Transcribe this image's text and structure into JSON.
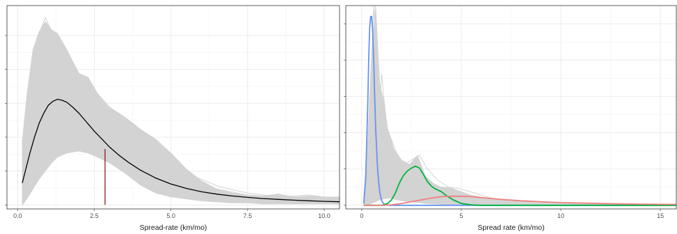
{
  "colors": {
    "background": "#ffffff",
    "panel_border": "#333333",
    "grid_major": "#ebebeb",
    "grid_minor": "#f4f4f4",
    "posterior_draws": "#d3d3d3",
    "fit_curve": "#000000",
    "marker_line": "#8b1a1a",
    "series_blue": "#6495ed",
    "series_green": "#00b33c",
    "series_red": "#f08080"
  },
  "chart_data": [
    {
      "type": "line",
      "xlabel": "Spread-rate (km/mo)",
      "ylabel": "",
      "xlim": [
        -0.35,
        10.5
      ],
      "ylim": [
        -0.02,
        1.0
      ],
      "x_ticks": [
        0,
        2.5,
        5,
        7.5,
        10
      ],
      "x_tick_labels": [
        "0.0",
        "2.5",
        "5.0",
        "7.5",
        "10.0"
      ],
      "y_ticks": [
        0.0,
        0.17,
        0.34,
        0.51,
        0.68,
        0.85
      ],
      "y_tick_labels": [],
      "grid": true,
      "legend": "none",
      "draws": {
        "description_for_band": "many grey density draws",
        "band_upper": {
          "x": [
            0.15,
            0.3,
            0.5,
            0.7,
            0.9,
            1.1,
            1.3,
            1.6,
            2.0,
            2.3,
            2.6,
            3.0,
            3.5,
            4.0,
            4.5,
            5.0,
            5.5,
            6.0,
            6.5,
            7.0,
            7.5,
            8.0,
            8.5,
            9.0,
            9.5,
            10.0,
            10.5
          ],
          "y": [
            0.32,
            0.55,
            0.78,
            0.87,
            0.92,
            0.88,
            0.86,
            0.78,
            0.66,
            0.64,
            0.56,
            0.49,
            0.44,
            0.38,
            0.33,
            0.26,
            0.18,
            0.12,
            0.08,
            0.06,
            0.05,
            0.045,
            0.055,
            0.04,
            0.045,
            0.04,
            0.04
          ]
        },
        "band_lower": {
          "x": [
            0.15,
            0.3,
            0.5,
            0.7,
            0.9,
            1.1,
            1.3,
            1.6,
            2.0,
            2.3,
            2.6,
            3.0,
            3.5,
            4.0,
            4.5,
            5.0,
            5.5,
            6.0,
            6.5,
            7.0,
            7.5,
            8.0,
            8.5,
            9.0,
            9.5,
            10.0,
            10.5
          ],
          "y": [
            0.0,
            0.03,
            0.08,
            0.13,
            0.17,
            0.21,
            0.24,
            0.26,
            0.27,
            0.26,
            0.24,
            0.21,
            0.16,
            0.1,
            0.06,
            0.04,
            0.03,
            0.02,
            0.015,
            0.01,
            0.01,
            0.005,
            0.005,
            0.005,
            0.005,
            0.005,
            0.005
          ]
        },
        "curves": [
          {
            "x": [
              0.15,
              0.4,
              0.7,
              0.9,
              1.2,
              1.6,
              2.0,
              2.5,
              3.0,
              3.5,
              4.0,
              5.0,
              6.0,
              7.0,
              8.0,
              9.0,
              10.5
            ],
            "y": [
              0.2,
              0.55,
              0.86,
              0.94,
              0.84,
              0.68,
              0.55,
              0.42,
              0.3,
              0.2,
              0.13,
              0.06,
              0.03,
              0.02,
              0.01,
              0.01,
              0.005
            ]
          },
          {
            "x": [
              0.15,
              0.5,
              0.9,
              1.3,
              1.8,
              2.3,
              2.8,
              3.3,
              4.0,
              5.0,
              6.0,
              7.0,
              8.0,
              9.0,
              10.5
            ],
            "y": [
              0.1,
              0.3,
              0.5,
              0.6,
              0.58,
              0.62,
              0.52,
              0.38,
              0.25,
              0.12,
              0.06,
              0.03,
              0.02,
              0.01,
              0.005
            ]
          },
          {
            "x": [
              0.15,
              0.5,
              1.0,
              1.5,
              2.0,
              2.5,
              3.0,
              3.5,
              4.0,
              4.5,
              5.0,
              6.0,
              7.0,
              8.0,
              9.0,
              10.5
            ],
            "y": [
              0.05,
              0.2,
              0.35,
              0.42,
              0.44,
              0.42,
              0.38,
              0.32,
              0.25,
              0.2,
              0.15,
              0.09,
              0.05,
              0.03,
              0.02,
              0.01
            ]
          },
          {
            "x": [
              0.15,
              0.4,
              0.8,
              1.2,
              1.6,
              2.0,
              2.6,
              3.2,
              4.0,
              5.0,
              6.0,
              7.5,
              9.0,
              10.5
            ],
            "y": [
              0.25,
              0.6,
              0.8,
              0.76,
              0.66,
              0.56,
              0.44,
              0.32,
              0.2,
              0.1,
              0.05,
              0.02,
              0.01,
              0.005
            ]
          },
          {
            "x": [
              0.15,
              0.6,
              1.2,
              1.8,
              2.4,
              3.0,
              3.6,
              4.2,
              5.0,
              5.8,
              6.6,
              7.5,
              8.5,
              9.5,
              10.5
            ],
            "y": [
              0.03,
              0.12,
              0.25,
              0.32,
              0.36,
              0.34,
              0.3,
              0.26,
              0.2,
              0.14,
              0.09,
              0.06,
              0.04,
              0.05,
              0.03
            ]
          },
          {
            "x": [
              0.15,
              0.5,
              0.9,
              1.4,
              2.0,
              2.6,
              3.2,
              3.8,
              4.5,
              5.5,
              6.5,
              7.5,
              8.5,
              10.5
            ],
            "y": [
              0.15,
              0.42,
              0.7,
              0.72,
              0.6,
              0.5,
              0.42,
              0.33,
              0.24,
              0.14,
              0.08,
              0.05,
              0.03,
              0.01
            ]
          },
          {
            "x": [
              0.15,
              0.5,
              1.0,
              1.5,
              2.0,
              2.5,
              3.0,
              3.5,
              4.0,
              5.0,
              6.0,
              7.0,
              8.0,
              10.5
            ],
            "y": [
              0.08,
              0.3,
              0.55,
              0.58,
              0.5,
              0.43,
              0.37,
              0.3,
              0.24,
              0.14,
              0.08,
              0.04,
              0.02,
              0.005
            ]
          }
        ]
      },
      "fit_curve": {
        "x": [
          0.15,
          0.25,
          0.4,
          0.55,
          0.7,
          0.85,
          1.0,
          1.15,
          1.3,
          1.45,
          1.6,
          1.8,
          2.0,
          2.25,
          2.5,
          2.75,
          3.0,
          3.3,
          3.6,
          4.0,
          4.5,
          5.0,
          5.5,
          6.0,
          6.5,
          7.0,
          7.5,
          8.0,
          8.5,
          9.0,
          9.5,
          10.0,
          10.5
        ],
        "y": [
          0.11,
          0.17,
          0.26,
          0.34,
          0.41,
          0.46,
          0.5,
          0.52,
          0.53,
          0.525,
          0.515,
          0.49,
          0.46,
          0.415,
          0.37,
          0.33,
          0.29,
          0.25,
          0.215,
          0.175,
          0.135,
          0.105,
          0.083,
          0.066,
          0.054,
          0.045,
          0.038,
          0.032,
          0.028,
          0.024,
          0.021,
          0.018,
          0.016
        ]
      },
      "marker": {
        "x": 2.85,
        "y_top": 0.28
      }
    },
    {
      "type": "line",
      "xlabel": "Spread rate (km/mo)",
      "ylabel": "",
      "xlim": [
        -0.8,
        15.8
      ],
      "ylim": [
        -0.04,
        2.2
      ],
      "x_ticks": [
        0,
        5,
        10,
        15
      ],
      "x_tick_labels": [
        "0",
        "5",
        "10",
        "15"
      ],
      "y_ticks": [
        0.0,
        0.4,
        0.8,
        1.2,
        1.6,
        2.0
      ],
      "y_tick_labels": [],
      "grid": true,
      "legend": "none",
      "draws": {
        "band_upper": {
          "x": [
            0.1,
            0.3,
            0.5,
            0.7,
            0.9,
            1.1,
            1.3,
            1.6,
            2.0,
            2.4,
            2.8,
            3.2,
            3.6,
            4.0,
            4.5,
            5.0,
            5.5,
            6.0,
            7.0,
            8.0,
            9.0,
            10.0,
            11.0,
            12.0,
            13.0,
            14.0,
            15.8
          ],
          "y": [
            0.1,
            0.7,
            1.7,
            2.2,
            1.35,
            1.15,
            0.85,
            0.62,
            0.5,
            0.45,
            0.55,
            0.32,
            0.24,
            0.2,
            0.19,
            0.15,
            0.11,
            0.09,
            0.06,
            0.04,
            0.03,
            0.02,
            0.02,
            0.015,
            0.015,
            0.01,
            0.01
          ]
        },
        "band_lower": {
          "x": [
            0.1,
            0.3,
            0.5,
            0.7,
            0.9,
            1.1,
            1.3,
            1.6,
            2.0,
            2.4,
            2.8,
            3.2,
            3.6,
            4.0,
            4.5,
            5.0,
            5.5,
            6.0,
            7.0,
            8.0,
            9.0,
            10.0,
            11.0,
            12.0,
            13.0,
            14.0,
            15.8
          ],
          "y": [
            0.0,
            0.0,
            0.02,
            0.04,
            0.06,
            0.07,
            0.08,
            0.07,
            0.05,
            0.04,
            0.03,
            0.02,
            0.015,
            0.01,
            0.005,
            0.005,
            0.0,
            0.0,
            0.0,
            0.0,
            0.0,
            0.0,
            0.0,
            0.0,
            0.0,
            0.0,
            0.0
          ]
        },
        "curves": [
          {
            "x": [
              0.1,
              0.3,
              0.5,
              0.6,
              0.7,
              0.8,
              1.0,
              1.3,
              1.7,
              2.2,
              3.0,
              4.0,
              5.0,
              6.0,
              8.0,
              10.0,
              15.8
            ],
            "y": [
              0.05,
              0.5,
              1.6,
              2.2,
              1.8,
              1.2,
              0.8,
              0.55,
              0.4,
              0.28,
              0.18,
              0.1,
              0.06,
              0.04,
              0.02,
              0.01,
              0.005
            ]
          },
          {
            "x": [
              0.1,
              0.4,
              0.7,
              0.9,
              1.0,
              1.1,
              1.3,
              1.6,
              2.0,
              2.5,
              3.0,
              4.0,
              5.0,
              6.0,
              8.0,
              10.0,
              15.8
            ],
            "y": [
              0.02,
              0.3,
              0.7,
              1.1,
              1.45,
              1.2,
              0.8,
              0.55,
              0.38,
              0.26,
              0.18,
              0.1,
              0.06,
              0.03,
              0.02,
              0.01,
              0.005
            ]
          },
          {
            "x": [
              0.1,
              0.5,
              1.0,
              1.5,
              2.0,
              2.5,
              2.9,
              3.3,
              3.8,
              4.5,
              5.5,
              7.0,
              9.0,
              12.0,
              15.8
            ],
            "y": [
              0.01,
              0.15,
              0.32,
              0.4,
              0.42,
              0.5,
              0.55,
              0.4,
              0.28,
              0.18,
              0.1,
              0.05,
              0.02,
              0.01,
              0.005
            ]
          },
          {
            "x": [
              0.1,
              0.4,
              0.8,
              1.2,
              1.7,
              2.3,
              3.0,
              3.8,
              4.6,
              5.5,
              6.5,
              8.0,
              10.0,
              12.0,
              15.8
            ],
            "y": [
              0.02,
              0.4,
              0.95,
              0.9,
              0.6,
              0.38,
              0.24,
              0.16,
              0.12,
              0.08,
              0.05,
              0.03,
              0.015,
              0.01,
              0.005
            ]
          },
          {
            "x": [
              0.1,
              0.6,
              1.2,
              1.8,
              2.5,
              3.2,
              4.0,
              4.8,
              5.6,
              6.5,
              7.5,
              9.0,
              11.0,
              13.0,
              15.8
            ],
            "y": [
              0.01,
              0.1,
              0.22,
              0.28,
              0.3,
              0.26,
              0.2,
              0.19,
              0.14,
              0.08,
              0.05,
              0.03,
              0.02,
              0.01,
              0.005
            ]
          }
        ]
      },
      "series": [
        {
          "color_key": "series_blue",
          "x": [
            0.1,
            0.2,
            0.3,
            0.35,
            0.4,
            0.45,
            0.5,
            0.55,
            0.6,
            0.65,
            0.7,
            0.8,
            0.9,
            1.0,
            1.1,
            1.2,
            1.4,
            2.0,
            5.0,
            10.0,
            15.8
          ],
          "y": [
            0.02,
            0.3,
            1.1,
            1.6,
            1.95,
            2.08,
            2.08,
            1.92,
            1.6,
            1.2,
            0.85,
            0.38,
            0.15,
            0.05,
            0.02,
            0.005,
            0.0,
            0.0,
            0.0,
            0.0,
            0.0
          ]
        },
        {
          "color_key": "series_green",
          "x": [
            0.1,
            1.0,
            1.3,
            1.5,
            1.7,
            1.9,
            2.1,
            2.3,
            2.5,
            2.7,
            2.9,
            3.1,
            3.3,
            3.5,
            3.7,
            4.0,
            4.3,
            4.6,
            5.0,
            5.5,
            6.0,
            10.0,
            15.8
          ],
          "y": [
            0.0,
            0.0,
            0.02,
            0.06,
            0.14,
            0.25,
            0.33,
            0.38,
            0.41,
            0.43,
            0.41,
            0.34,
            0.26,
            0.21,
            0.18,
            0.15,
            0.1,
            0.06,
            0.02,
            0.005,
            0.0,
            0.0,
            0.0
          ]
        },
        {
          "color_key": "series_red",
          "x": [
            0.1,
            1.0,
            1.5,
            2.0,
            2.5,
            3.0,
            3.5,
            4.0,
            4.5,
            5.0,
            5.5,
            6.0,
            6.5,
            7.0,
            8.0,
            9.0,
            10.0,
            11.0,
            12.0,
            13.0,
            14.0,
            15.0,
            15.8
          ],
          "y": [
            0.0,
            0.0,
            0.005,
            0.02,
            0.04,
            0.06,
            0.08,
            0.095,
            0.1,
            0.1,
            0.095,
            0.085,
            0.075,
            0.065,
            0.05,
            0.04,
            0.03,
            0.025,
            0.02,
            0.016,
            0.013,
            0.011,
            0.01
          ]
        }
      ]
    }
  ]
}
